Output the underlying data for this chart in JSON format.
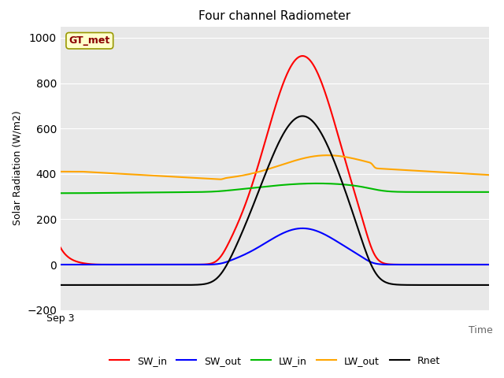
{
  "title": "Four channel Radiometer",
  "ylabel": "Solar Radiation (W/m2)",
  "xlabel": "Time",
  "x_tick_label": "Sep 3",
  "annotation": "GT_met",
  "ylim": [
    -200,
    1050
  ],
  "yticks": [
    -200,
    0,
    200,
    400,
    600,
    800,
    1000
  ],
  "background_color": "#e8e8e8",
  "fig_background": "#ffffff",
  "grid_color": "#ffffff",
  "title_fontsize": 11,
  "label_fontsize": 9,
  "legend_fontsize": 9,
  "line_width": 1.5,
  "colors": {
    "SW_in": "#ff0000",
    "SW_out": "#0000ff",
    "LW_in": "#00bb00",
    "LW_out": "#ffa500",
    "Rnet": "#000000"
  },
  "annotation_box": {
    "facecolor": "#ffffcc",
    "edgecolor": "#999900",
    "textcolor": "#8b0000"
  }
}
